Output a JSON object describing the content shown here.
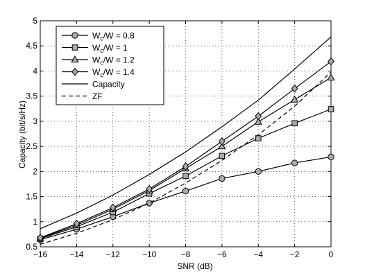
{
  "chart_data": {
    "type": "line",
    "xlabel": "SNR (dB)",
    "ylabel": "Capacity (bit/s/Hz)",
    "xlim": [
      -16,
      0
    ],
    "ylim": [
      0.5,
      5
    ],
    "xticks": [
      -16,
      -14,
      -12,
      -10,
      -8,
      -6,
      -4,
      -2,
      0
    ],
    "yticks": [
      0.5,
      1,
      1.5,
      2,
      2.5,
      3,
      3.5,
      4,
      4.5,
      5
    ],
    "xtick_labels": [
      "−16",
      "−14",
      "−12",
      "−10",
      "−8",
      "−6",
      "−4",
      "−2",
      "0"
    ],
    "ytick_labels": [
      "0.5",
      "1",
      "1.5",
      "2",
      "2.5",
      "3",
      "3.5",
      "4",
      "4.5",
      "5"
    ],
    "grid": true,
    "legend_position": "top-left",
    "x": [
      -16,
      -14,
      -12,
      -10,
      -8,
      -6,
      -4,
      -2,
      0
    ],
    "series": [
      {
        "name_base": "W",
        "name_sub": "c",
        "name_rest": "/W = 0.8",
        "marker": "circle",
        "style": "solid",
        "values": [
          0.64,
          0.85,
          1.1,
          1.37,
          1.61,
          1.86,
          2.0,
          2.17,
          2.29
        ]
      },
      {
        "name_base": "W",
        "name_sub": "c",
        "name_rest": "/W = 1",
        "marker": "square",
        "style": "solid",
        "values": [
          0.66,
          0.9,
          1.19,
          1.56,
          1.91,
          2.31,
          2.66,
          2.96,
          3.24
        ]
      },
      {
        "name_base": "W",
        "name_sub": "c",
        "name_rest": "/W = 1.2",
        "marker": "triangle",
        "style": "solid",
        "values": [
          0.67,
          0.93,
          1.25,
          1.62,
          2.06,
          2.5,
          2.99,
          3.43,
          3.87
        ]
      },
      {
        "name_base": "W",
        "name_sub": "c",
        "name_rest": "/W = 1.4",
        "marker": "diamond",
        "style": "solid",
        "values": [
          0.68,
          0.96,
          1.28,
          1.65,
          2.1,
          2.6,
          3.1,
          3.65,
          4.19
        ]
      },
      {
        "name": "Capacity",
        "marker": "none",
        "style": "solid",
        "values": [
          0.86,
          1.17,
          1.53,
          1.94,
          2.39,
          2.89,
          3.42,
          4.04,
          4.68
        ]
      },
      {
        "name": "ZF",
        "marker": "none",
        "style": "dashed",
        "values": [
          0.55,
          0.77,
          1.04,
          1.37,
          1.77,
          2.22,
          2.73,
          3.3,
          3.98
        ]
      }
    ]
  }
}
